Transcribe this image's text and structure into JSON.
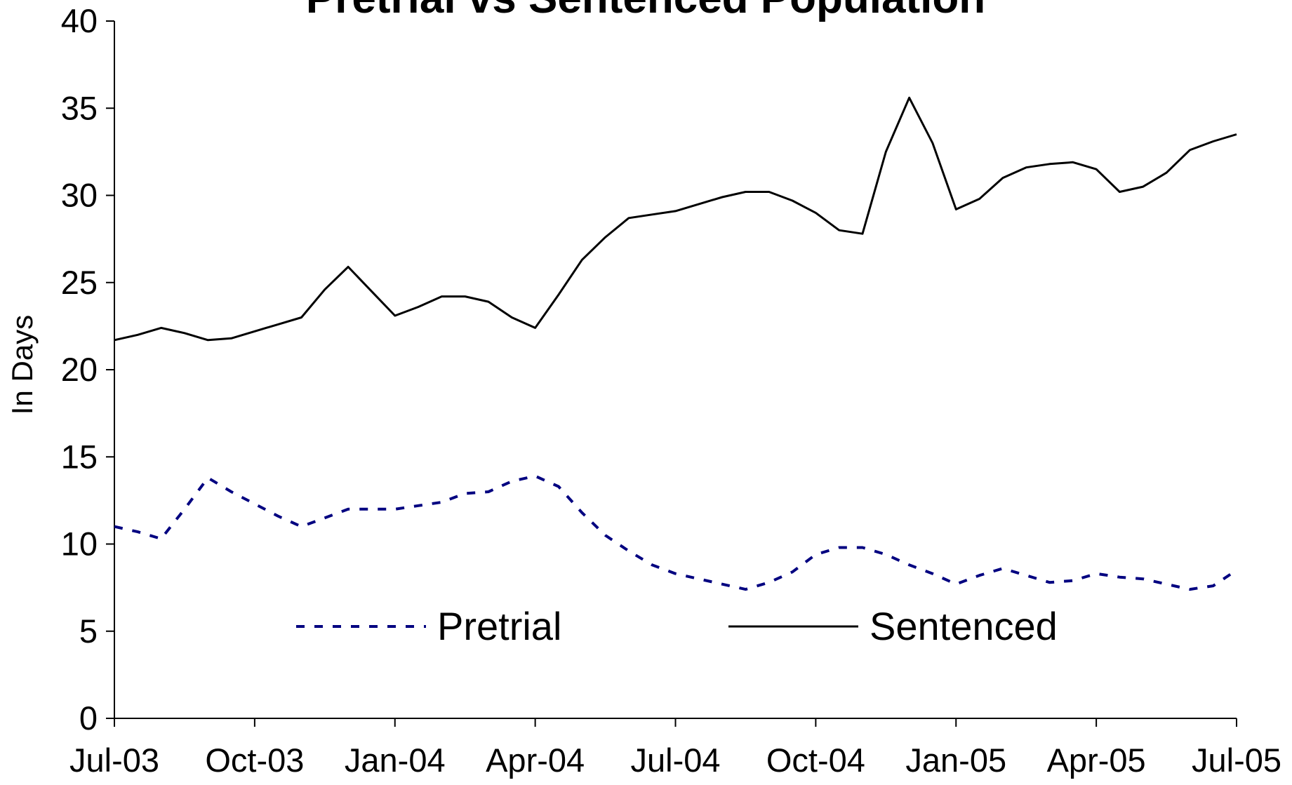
{
  "chart_data": {
    "type": "line",
    "title": "Pretrial vs Sentenced Population",
    "ylabel": "In Days",
    "categories": [
      "Jul-03",
      null,
      null,
      null,
      null,
      null,
      "Oct-03",
      null,
      null,
      null,
      null,
      null,
      "Jan-04",
      null,
      null,
      null,
      null,
      null,
      "Apr-04",
      null,
      null,
      null,
      null,
      null,
      "Jul-04",
      null,
      null,
      null,
      null,
      null,
      "Oct-04",
      null,
      null,
      null,
      null,
      null,
      "Jan-05",
      null,
      null,
      null,
      null,
      null,
      "Apr-05",
      null,
      null,
      null,
      null,
      null,
      "Jul-05"
    ],
    "series": [
      {
        "name": "Pretrial",
        "color": "#000080",
        "dash": "dotted",
        "values": [
          11.0,
          10.7,
          10.3,
          12.0,
          13.8,
          13.0,
          12.3,
          11.6,
          11.0,
          11.5,
          12.0,
          12.0,
          12.0,
          12.2,
          12.4,
          12.9,
          13.0,
          13.6,
          13.9,
          13.3,
          11.8,
          10.5,
          9.6,
          8.8,
          8.3,
          8.0,
          7.7,
          7.4,
          7.8,
          8.4,
          9.4,
          9.8,
          9.8,
          9.4,
          8.8,
          8.3,
          7.7,
          8.2,
          8.6,
          8.2,
          7.8,
          7.9,
          8.3,
          8.1,
          8.0,
          7.7,
          7.4,
          7.6,
          8.5
        ]
      },
      {
        "name": "Sentenced",
        "color": "#000000",
        "dash": "solid",
        "values": [
          21.7,
          22.0,
          22.4,
          22.1,
          21.7,
          21.8,
          22.2,
          22.6,
          23.0,
          24.6,
          25.9,
          24.5,
          23.1,
          23.6,
          24.2,
          24.2,
          23.9,
          23.0,
          22.4,
          24.3,
          26.3,
          27.6,
          28.7,
          28.9,
          29.1,
          29.5,
          29.9,
          30.2,
          30.2,
          29.7,
          29.0,
          28.0,
          27.8,
          32.5,
          35.6,
          33.0,
          29.2,
          29.8,
          31.0,
          31.6,
          31.8,
          31.9,
          31.5,
          30.2,
          30.5,
          31.3,
          32.6,
          33.1,
          33.5
        ]
      }
    ],
    "ylim": [
      0,
      40
    ],
    "yticks": [
      0,
      5,
      10,
      15,
      20,
      25,
      30,
      35,
      40
    ],
    "grid": false,
    "legend": "lower center"
  }
}
